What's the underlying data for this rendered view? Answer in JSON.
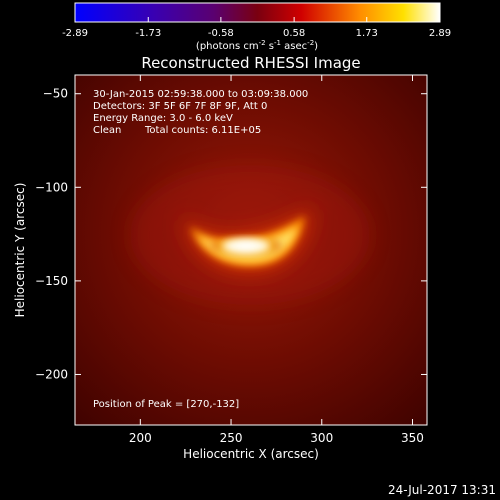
{
  "colorbar": {
    "ticks": [
      "-2.89",
      "-1.73",
      "-0.58",
      "0.58",
      "1.73",
      "2.89"
    ],
    "units_main": "(photons cm",
    "units_sup1": "-2",
    "units_mid1": " s",
    "units_sup2": "-1",
    "units_mid2": " asec",
    "units_sup3": "-2",
    "units_end": ")"
  },
  "chart_data": {
    "type": "heatmap",
    "title": "Reconstructed RHESSI Image",
    "xlabel": "Heliocentric X (arcsec)",
    "ylabel": "Heliocentric Y (arcsec)",
    "xlim": [
      164,
      358
    ],
    "ylim": [
      -227,
      -40
    ],
    "xticks": [
      200,
      250,
      300,
      350
    ],
    "yticks": [
      -50,
      -100,
      -150,
      -200
    ],
    "peak": {
      "x": 270,
      "y": -132
    },
    "colorbar_range": [
      -2.89,
      2.89
    ],
    "colormap": "hot"
  },
  "info": {
    "line1": "30-Jan-2015 02:59:38.000 to 03:09:38.000",
    "line2": "Detectors: 3F 5F 6F 7F 8F 9F, Att 0",
    "line3": "Energy Range: 3.0 - 6.0 keV",
    "line4_a": "Clean",
    "line4_b": "Total counts: 6.11E+05",
    "peak_text": "Position of Peak = [270,-132]"
  },
  "footer": {
    "date": "24-Jul-2017 13:31"
  }
}
